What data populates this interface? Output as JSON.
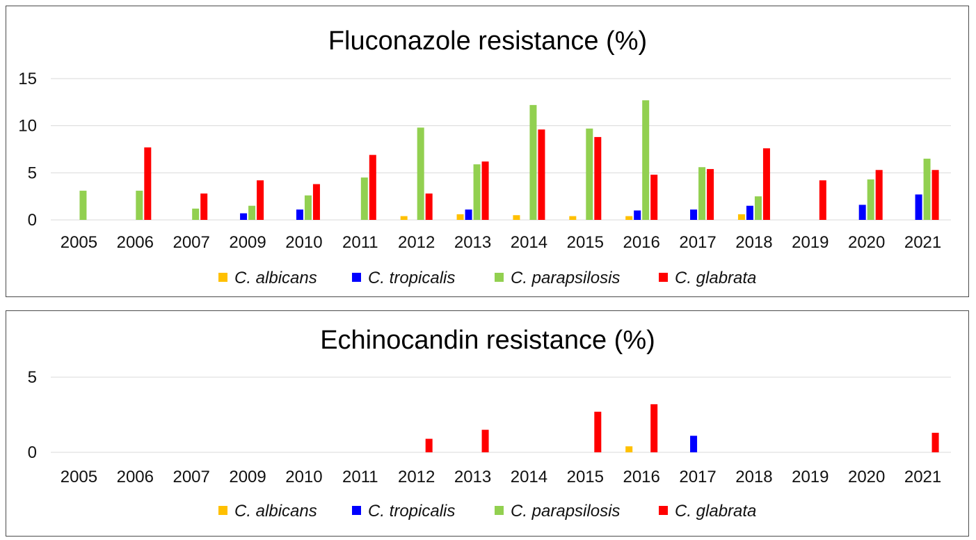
{
  "chart_data": [
    {
      "type": "bar",
      "title": "Fluconazole resistance (%)",
      "ylim": [
        0,
        15
      ],
      "yticks": [
        0,
        5,
        10,
        15
      ],
      "grid": true,
      "legend_position": "bottom",
      "categories": [
        "2005",
        "2006",
        "2007",
        "2009",
        "2010",
        "2011",
        "2012",
        "2013",
        "2014",
        "2015",
        "2016",
        "2017",
        "2018",
        "2019",
        "2020",
        "2021"
      ],
      "series": [
        {
          "name": "C. albicans",
          "color": "#FFC000",
          "values": [
            0,
            0,
            0,
            0,
            0,
            0,
            0.4,
            0.6,
            0.5,
            0.4,
            0.4,
            0,
            0.6,
            0,
            0,
            0
          ]
        },
        {
          "name": "C. tropicalis",
          "color": "#0000FF",
          "values": [
            0,
            0,
            0,
            0.7,
            1.1,
            0,
            0,
            1.1,
            0,
            0,
            1.0,
            1.1,
            1.5,
            0,
            1.6,
            2.7
          ]
        },
        {
          "name": "C. parapsilosis",
          "color": "#92D050",
          "values": [
            3.1,
            3.1,
            1.2,
            1.5,
            2.6,
            4.5,
            9.8,
            5.9,
            12.2,
            9.7,
            12.7,
            5.6,
            2.5,
            0,
            4.3,
            6.5
          ]
        },
        {
          "name": "C. glabrata",
          "color": "#FF0000",
          "values": [
            0,
            7.7,
            2.8,
            4.2,
            3.8,
            6.9,
            2.8,
            6.2,
            9.6,
            8.8,
            4.8,
            5.4,
            7.6,
            4.2,
            5.3,
            5.3
          ]
        }
      ]
    },
    {
      "type": "bar",
      "title": "Echinocandin resistance (%)",
      "ylim": [
        0,
        5
      ],
      "yticks": [
        0,
        5
      ],
      "grid": true,
      "legend_position": "bottom",
      "categories": [
        "2005",
        "2006",
        "2007",
        "2009",
        "2010",
        "2011",
        "2012",
        "2013",
        "2014",
        "2015",
        "2016",
        "2017",
        "2018",
        "2019",
        "2020",
        "2021"
      ],
      "series": [
        {
          "name": "C. albicans",
          "color": "#FFC000",
          "values": [
            0,
            0,
            0,
            0,
            0,
            0,
            0,
            0,
            0,
            0,
            0.4,
            0,
            0,
            0,
            0,
            0
          ]
        },
        {
          "name": "C. tropicalis",
          "color": "#0000FF",
          "values": [
            0,
            0,
            0,
            0,
            0,
            0,
            0,
            0,
            0,
            0,
            0,
            1.1,
            0,
            0,
            0,
            0
          ]
        },
        {
          "name": "C. parapsilosis",
          "color": "#92D050",
          "values": [
            0,
            0,
            0,
            0,
            0,
            0,
            0,
            0,
            0,
            0,
            0,
            0,
            0,
            0,
            0,
            0
          ]
        },
        {
          "name": "C. glabrata",
          "color": "#FF0000",
          "values": [
            0,
            0,
            0,
            0,
            0,
            0,
            0.9,
            1.5,
            0,
            2.7,
            3.2,
            0,
            0,
            0,
            0,
            1.3
          ]
        }
      ]
    }
  ]
}
